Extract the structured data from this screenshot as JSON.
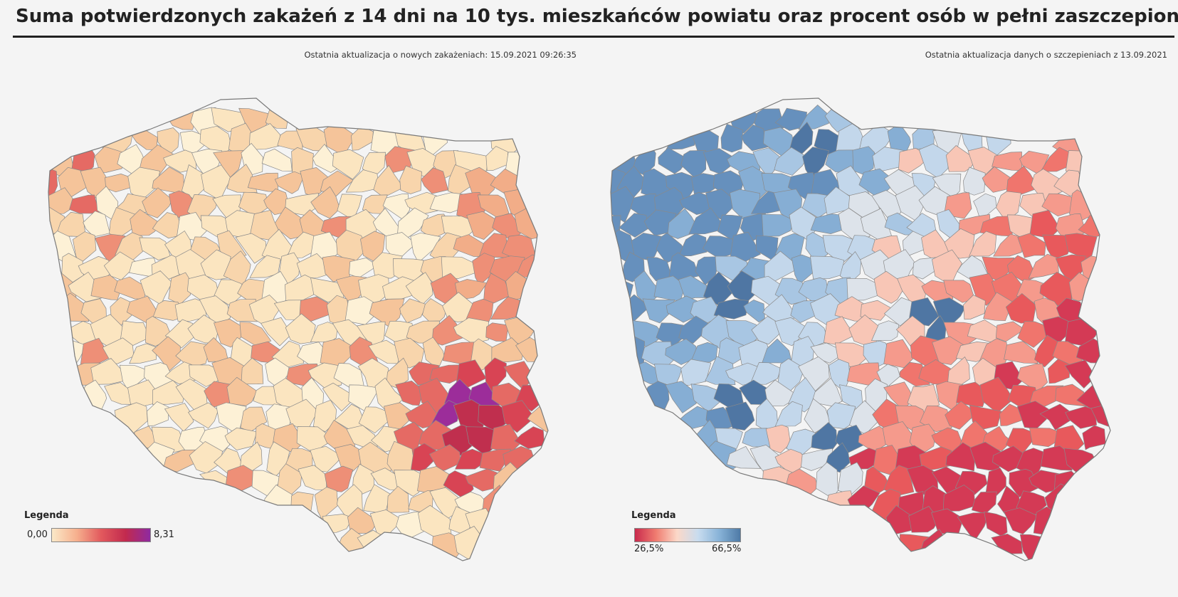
{
  "header": {
    "title": "Suma potwierdzonych zakażeń z 14 dni na 10 tys. mieszkańców powiatu oraz procent osób w pełni zaszczepionych"
  },
  "left_panel": {
    "update_text": "Ostatnia aktualizacja o nowych zakażeniach: 15.09.2021 09:26:35",
    "legend": {
      "title": "Legenda",
      "min_label": "0,00",
      "max_label": "8,31",
      "colors": [
        "#fbe9c8",
        "#f6b08e",
        "#e2595d",
        "#c22a4e",
        "#8e2aa1"
      ]
    }
  },
  "right_panel": {
    "update_text": "Ostatnia aktualizacja danych o szczepieniach z 13.09.2021",
    "legend": {
      "title": "Legenda",
      "min_label": "26,5%",
      "max_label": "66,5%",
      "colors": [
        "#c92a4d",
        "#f07c70",
        "#fbd8c8",
        "#c8dcef",
        "#88b3d8",
        "#4e7aa6"
      ]
    }
  },
  "palettes": {
    "infections": [
      "#fdf1d6",
      "#fbe5c0",
      "#f8d5ac",
      "#f5c49a",
      "#f2ad88",
      "#ee8f77",
      "#e56a64",
      "#d84454",
      "#c02f4e",
      "#9c2d9a"
    ],
    "vaccination": [
      "#d43a55",
      "#e8595c",
      "#f0756d",
      "#f59a8c",
      "#f8c6b6",
      "#dde3ea",
      "#c3d7eb",
      "#a8c6e3",
      "#86aed4",
      "#6690bd",
      "#4f76a3"
    ]
  }
}
